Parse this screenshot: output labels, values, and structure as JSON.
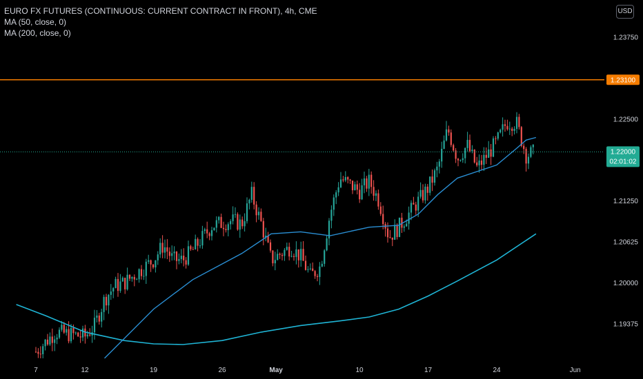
{
  "legend": {
    "title": "EURO FX FUTURES (CONTINUOUS: CURRENT CONTRACT IN FRONT), 4h, CME",
    "ma1": "MA (50, close, 0)",
    "ma2": "MA (200, close, 0)"
  },
  "currency": "USD",
  "colors": {
    "background": "#000000",
    "up": "#26a69a",
    "down": "#ef5350",
    "ma50": "#2a8fd4",
    "ma200": "#1fb5d6",
    "level": "#f57c00",
    "last_price": "#22ab94"
  },
  "chart_data": {
    "type": "candlestick",
    "y_ticks": [
      "1.23750",
      "1.22500",
      "1.21250",
      "1.20625",
      "1.20000",
      "1.19375"
    ],
    "x_ticks": [
      "7",
      "12",
      "19",
      "26",
      "May",
      "10",
      "17",
      "24",
      "Jun"
    ],
    "horizontal_level": {
      "value": 1.231,
      "label": "1.23100"
    },
    "last_price": {
      "value": 1.22,
      "label": "1.22000",
      "countdown": "02:01:02"
    },
    "ylim": [
      1.1885,
      1.2425
    ],
    "anchors": [
      [
        "Apr 07",
        1.1895
      ],
      [
        "Apr 09",
        1.1925
      ],
      [
        "Apr 12",
        1.1918
      ],
      [
        "Apr 13",
        1.1935
      ],
      [
        "Apr 14",
        1.1975
      ],
      [
        "Apr 15",
        1.1995
      ],
      [
        "Apr 16",
        1.2
      ],
      [
        "Apr 19",
        1.2035
      ],
      [
        "Apr 20",
        1.2058
      ],
      [
        "Apr 21",
        1.2035
      ],
      [
        "Apr 22",
        1.2035
      ],
      [
        "Apr 23",
        1.205
      ],
      [
        "Apr 25",
        1.2088
      ],
      [
        "Apr 27",
        1.2095
      ],
      [
        "Apr 28",
        1.209
      ],
      [
        "Apr 29",
        1.2135
      ],
      [
        "Apr 30",
        1.209
      ],
      [
        "May 01",
        1.2035
      ],
      [
        "May 03",
        1.2055
      ],
      [
        "May 04",
        1.204
      ],
      [
        "May 05",
        1.201
      ],
      [
        "May 06",
        1.2025
      ],
      [
        "May 07",
        1.2105
      ],
      [
        "May 08",
        1.216
      ],
      [
        "May 10",
        1.214
      ],
      [
        "May 11",
        1.2155
      ],
      [
        "May 12",
        1.2125
      ],
      [
        "May 13",
        1.207
      ],
      [
        "May 14",
        1.2085
      ],
      [
        "May 16",
        1.2125
      ],
      [
        "May 17",
        1.2145
      ],
      [
        "May 18",
        1.2175
      ],
      [
        "May 19",
        1.2235
      ],
      [
        "May 20",
        1.219
      ],
      [
        "May 21",
        1.221
      ],
      [
        "May 22",
        1.2175
      ],
      [
        "May 24",
        1.2215
      ],
      [
        "May 25",
        1.2245
      ],
      [
        "May 26",
        1.2245
      ],
      [
        "May 27",
        1.2195
      ],
      [
        "May 28",
        1.22
      ]
    ],
    "ma50": [
      [
        "Apr 14",
        1.1885
      ],
      [
        "Apr 19",
        1.196
      ],
      [
        "Apr 23",
        1.2005
      ],
      [
        "Apr 28",
        1.2045
      ],
      [
        "May 01",
        1.2075
      ],
      [
        "May 04",
        1.2078
      ],
      [
        "May 07",
        1.2072
      ],
      [
        "May 11",
        1.2085
      ],
      [
        "May 14",
        1.2088
      ],
      [
        "May 16",
        1.2105
      ],
      [
        "May 18",
        1.2135
      ],
      [
        "May 20",
        1.216
      ],
      [
        "May 24",
        1.218
      ],
      [
        "May 26",
        1.2205
      ],
      [
        "May 27",
        1.2218
      ],
      [
        "May 28",
        1.2222
      ]
    ],
    "ma200": [
      [
        "Apr 05",
        1.1967
      ],
      [
        "Apr 08",
        1.195
      ],
      [
        "Apr 12",
        1.1925
      ],
      [
        "Apr 16",
        1.1912
      ],
      [
        "Apr 19",
        1.1907
      ],
      [
        "Apr 22",
        1.1906
      ],
      [
        "Apr 26",
        1.1912
      ],
      [
        "Apr 30",
        1.1925
      ],
      [
        "May 04",
        1.1935
      ],
      [
        "May 08",
        1.1942
      ],
      [
        "May 11",
        1.1948
      ],
      [
        "May 14",
        1.196
      ],
      [
        "May 17",
        1.198
      ],
      [
        "May 20",
        1.2003
      ],
      [
        "May 24",
        1.2035
      ],
      [
        "May 28",
        1.2075
      ]
    ]
  }
}
